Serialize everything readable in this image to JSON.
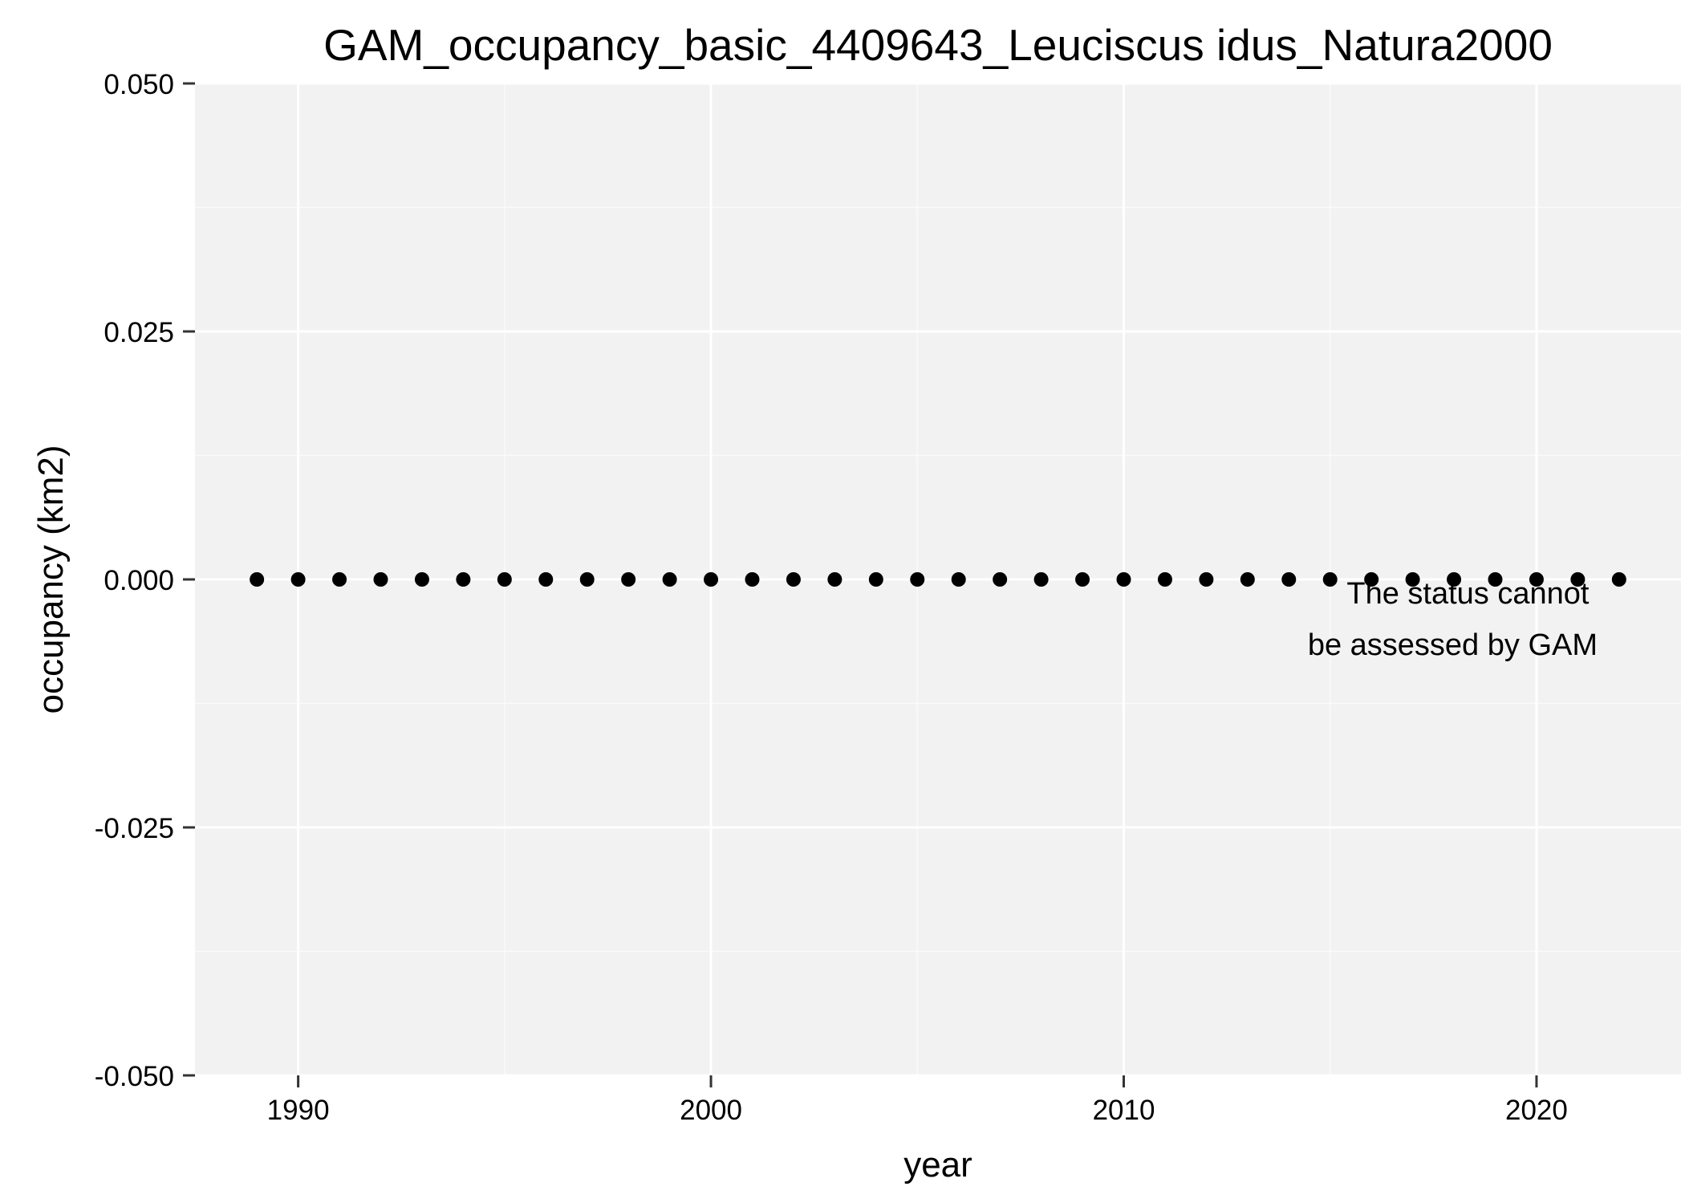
{
  "chart_data": {
    "type": "scatter",
    "title": "GAM_occupancy_basic_4409643_Leuciscus idus_Natura2000",
    "xlabel": "year",
    "ylabel": "occupancy (km2)",
    "xlim": [
      1987.5,
      2023.5
    ],
    "ylim": [
      -0.05,
      0.05
    ],
    "x_ticks": [
      1990,
      2000,
      2010,
      2020
    ],
    "x_tick_labels": [
      "1990",
      "2000",
      "2010",
      "2020"
    ],
    "y_ticks": [
      -0.05,
      -0.025,
      0,
      0.025,
      0.05
    ],
    "y_tick_labels": [
      "-0.050",
      "-0.025",
      "0.000",
      "0.025",
      "0.050"
    ],
    "x_minor_ticks": [
      1995,
      2005,
      2015
    ],
    "y_minor_ticks": [
      -0.0375,
      -0.0125,
      0.0125,
      0.0375
    ],
    "grid": true,
    "legend": "none",
    "series": [
      {
        "x": [
          1989,
          1990,
          1991,
          1992,
          1993,
          1994,
          1995,
          1996,
          1997,
          1998,
          1999,
          2000,
          2001,
          2002,
          2003,
          2004,
          2005,
          2006,
          2007,
          2008,
          2009,
          2010,
          2011,
          2012,
          2013,
          2014,
          2015,
          2016,
          2017,
          2018,
          2019,
          2020,
          2021,
          2022
        ],
        "y": [
          0,
          0,
          0,
          0,
          0,
          0,
          0,
          0,
          0,
          0,
          0,
          0,
          0,
          0,
          0,
          0,
          0,
          0,
          0,
          0,
          0,
          0,
          0,
          0,
          0,
          0,
          0,
          0,
          0,
          0,
          0,
          0,
          0,
          0
        ],
        "color": "#000000"
      }
    ],
    "annotation": {
      "lines": [
        "The status cannot",
        "be assessed by GAM"
      ],
      "color": "#ff0000"
    },
    "colors": {
      "panel_background": "#f2f2f2",
      "major_grid": "#ffffff",
      "minor_grid": "#fafafa"
    }
  }
}
